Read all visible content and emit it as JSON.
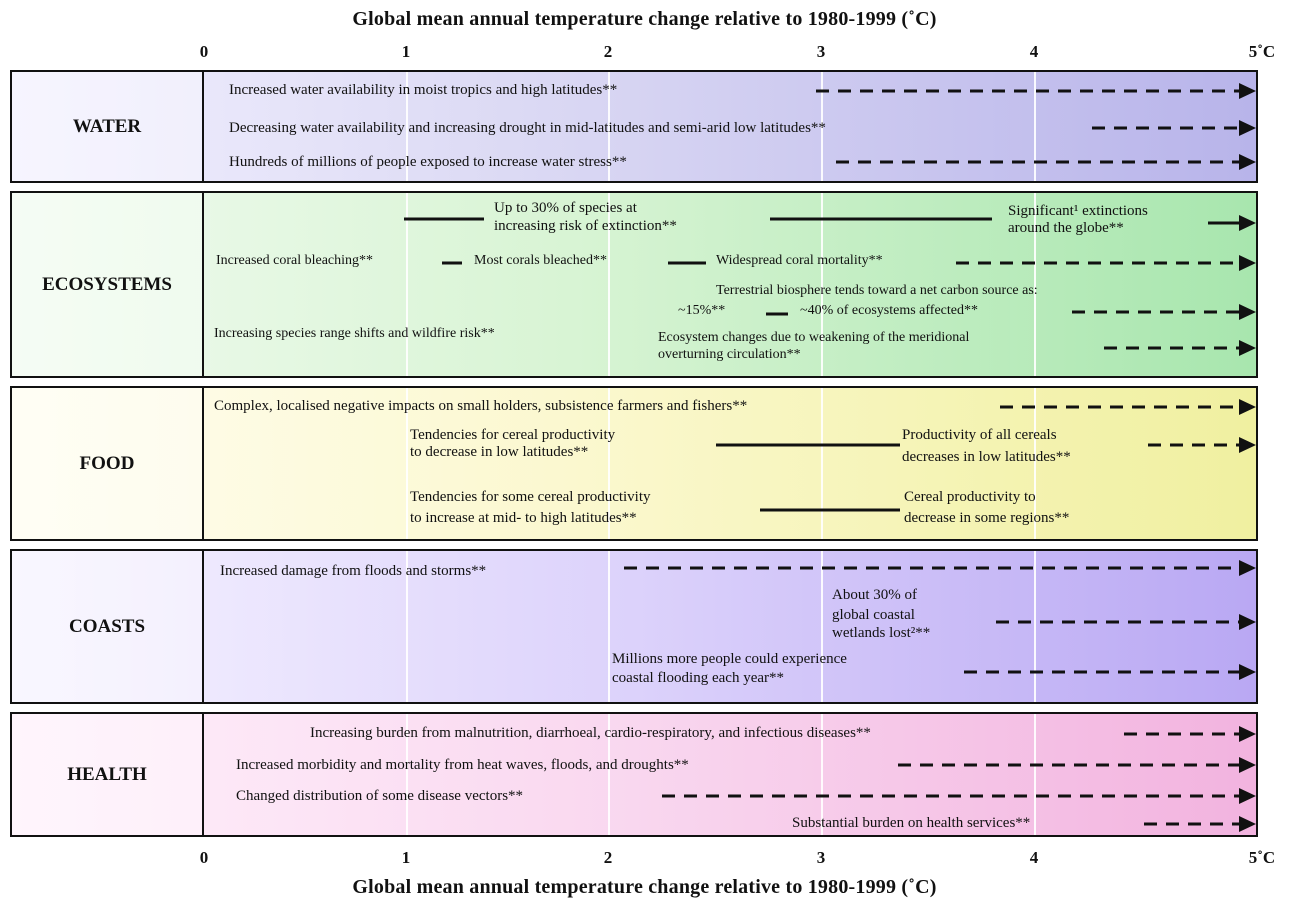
{
  "axis": {
    "title_top": "Global mean annual temperature change relative to 1980-1999 (˚C)",
    "title_bottom": "Global mean annual temperature change relative to 1980-1999 (˚C)",
    "ticks": [
      "0",
      "1",
      "2",
      "3",
      "4",
      "5˚C"
    ]
  },
  "sectors": {
    "water": {
      "label": "WATER",
      "items": [
        "Increased water availability in moist tropics and high latitudes**",
        "Decreasing water availability and increasing drought in mid-latitudes and semi-arid low latitudes**",
        "Hundreds of millions of people exposed to increase water stress**"
      ]
    },
    "ecosystems": {
      "label": "ECOSYSTEMS",
      "items": [
        "Up to 30% of species at",
        "increasing risk of extinction**",
        "Significant¹ extinctions",
        "around the globe**",
        "Increased coral bleaching**",
        "Most corals bleached**",
        "Widespread coral mortality**",
        "Terrestrial biosphere tends toward a net carbon source as:",
        "~15%**",
        "~40% of ecosystems affected**",
        "Increasing species range shifts and wildfire risk**",
        "Ecosystem changes due to weakening of the meridional",
        "overturning circulation**"
      ]
    },
    "food": {
      "label": "FOOD",
      "items": [
        "Complex, localised negative impacts on small holders, subsistence farmers and fishers**",
        "Tendencies for cereal productivity",
        "to decrease in low latitudes**",
        "Productivity of all cereals",
        "decreases in low latitudes**",
        "Tendencies for some cereal productivity",
        "to increase at mid- to high latitudes**",
        "Cereal productivity to",
        "decrease in some regions**"
      ]
    },
    "coasts": {
      "label": "COASTS",
      "items": [
        "Increased damage from floods and storms**",
        "About 30% of",
        "global coastal",
        "wetlands lost²**",
        "Millions more people could experience",
        "coastal flooding each year**"
      ]
    },
    "health": {
      "label": "HEALTH",
      "items": [
        "Increasing burden from malnutrition, diarrhoeal, cardio-respiratory, and infectious diseases**",
        "Increased morbidity and mortality from heat waves, floods, and droughts**",
        "Changed distribution of some disease vectors**",
        "Substantial burden on health services**"
      ]
    }
  },
  "colors": {
    "water": "#b8b4ea",
    "ecosystems": "#a8e6ae",
    "food": "#f0f0a0",
    "coasts": "#b9a8f3",
    "health": "#f2b3df",
    "line": "#111111"
  }
}
